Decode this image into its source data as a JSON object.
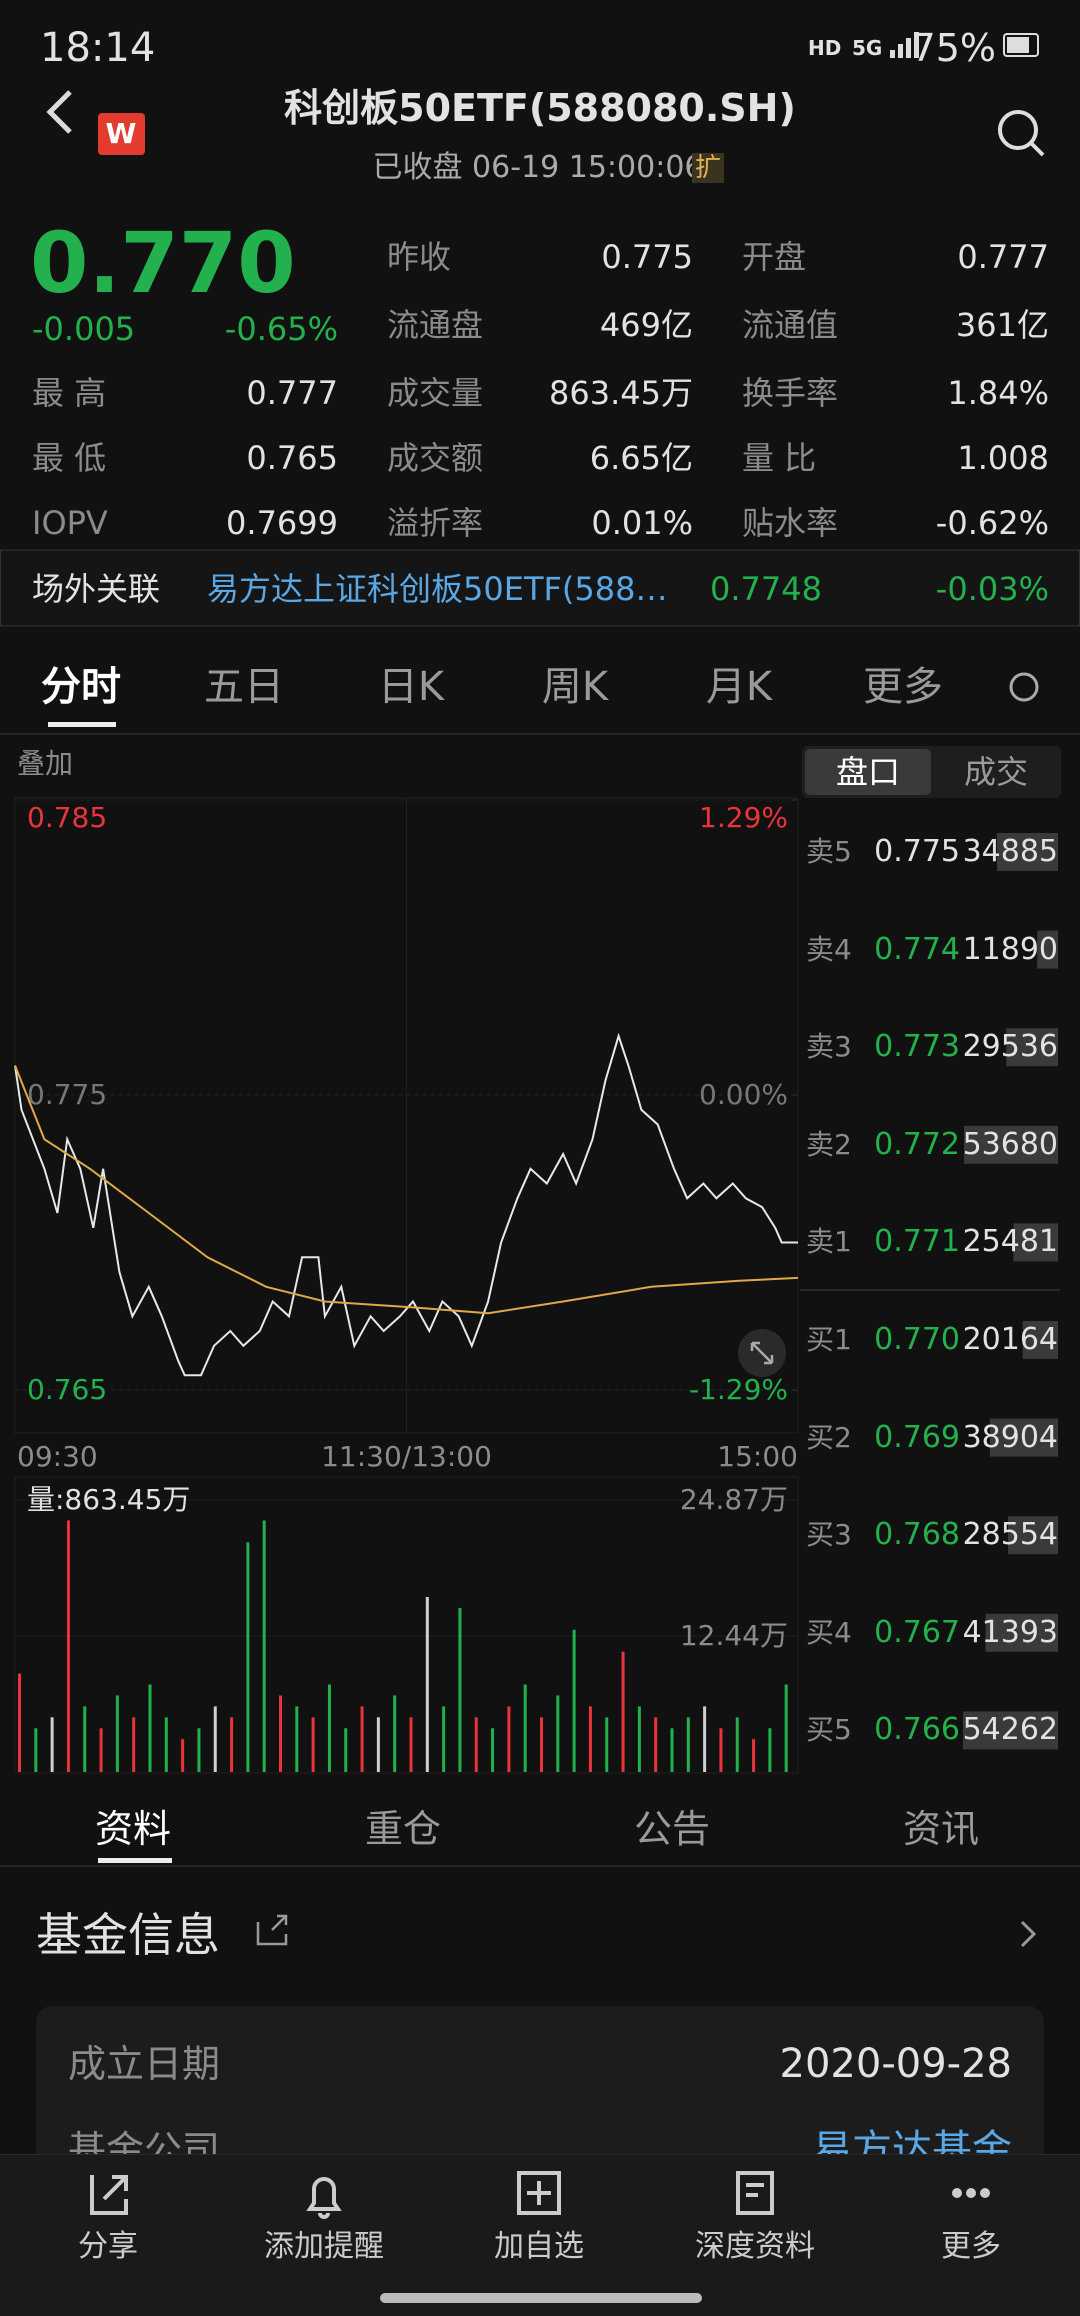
{
  "status_bar": {
    "time": "18:14",
    "hd": "HD",
    "network": "5G",
    "battery": "75%"
  },
  "header": {
    "logo": "W",
    "title": "科创板50ETF(588080.SH)",
    "subtitle": "已收盘 06-19 15:00:06",
    "badge": "扩"
  },
  "quote": {
    "price": "0.770",
    "change": "-0.005",
    "change_pct": "-0.65%",
    "left_stats": [
      {
        "label": "最 高",
        "value": "0.777"
      },
      {
        "label": "最 低",
        "value": "0.765"
      },
      {
        "label": "IOPV",
        "value": "0.7699"
      }
    ],
    "mid_stats": [
      {
        "label": "昨收",
        "value": "0.775"
      },
      {
        "label": "流通盘",
        "value": "469亿"
      },
      {
        "label": "成交量",
        "value": "863.45万"
      },
      {
        "label": "成交额",
        "value": "6.65亿"
      },
      {
        "label": "溢折率",
        "value": "0.01%"
      }
    ],
    "right_stats": [
      {
        "label": "开盘",
        "value": "0.777"
      },
      {
        "label": "流通值",
        "value": "361亿"
      },
      {
        "label": "换手率",
        "value": "1.84%"
      },
      {
        "label": "量 比",
        "value": "1.008"
      },
      {
        "label": "贴水率",
        "value": "-0.62%"
      }
    ]
  },
  "linked": {
    "label": "场外关联",
    "name": "易方达上证科创板50ETF(588…",
    "price": "0.7748",
    "change": "-0.03%"
  },
  "chart_tabs": [
    "分时",
    "五日",
    "日K",
    "周K",
    "月K",
    "更多"
  ],
  "overlay": "叠加",
  "book_tabs": [
    "盘口",
    "成交"
  ],
  "chart_data": [
    {
      "type": "line",
      "xlim": [
        0,
        240
      ],
      "xticks": [
        {
          "value": 0,
          "label": "09:30"
        },
        {
          "value": 120,
          "label": "11:30/13:00"
        },
        {
          "value": 240,
          "label": "15:00"
        }
      ],
      "ylim": [
        0.765,
        0.785
      ],
      "yticks": [
        0.785,
        0.775,
        0.765
      ],
      "y2lim": [
        -1.29,
        1.29
      ],
      "y2ticks": [
        {
          "value": 1.29,
          "label": "1.29%"
        },
        {
          "value": 0,
          "label": "0.00%"
        },
        {
          "value": -1.29,
          "label": "-1.29%"
        }
      ],
      "grid": true,
      "series": [
        {
          "color": "#e8e8e8",
          "x": [
            0,
            2,
            9,
            13,
            16,
            20,
            24,
            27,
            32,
            36,
            41,
            45,
            50,
            52,
            57,
            61,
            66,
            70,
            75,
            79,
            84,
            88,
            93,
            95,
            100,
            104,
            109,
            113,
            118,
            122,
            127,
            131,
            136,
            140,
            145,
            149,
            154,
            158,
            163,
            168,
            172,
            177,
            181,
            185,
            188,
            192,
            197,
            202,
            206,
            211,
            215,
            220,
            224,
            229,
            233,
            235,
            240
          ],
          "values": [
            0.776,
            0.7745,
            0.7725,
            0.771,
            0.7735,
            0.7725,
            0.7705,
            0.7725,
            0.769,
            0.7675,
            0.7685,
            0.7675,
            0.766,
            0.7655,
            0.7655,
            0.7665,
            0.767,
            0.7665,
            0.767,
            0.768,
            0.7675,
            0.7695,
            0.7695,
            0.7675,
            0.7685,
            0.7665,
            0.7675,
            0.767,
            0.7675,
            0.768,
            0.767,
            0.768,
            0.7675,
            0.7665,
            0.768,
            0.77,
            0.7715,
            0.7725,
            0.772,
            0.773,
            0.772,
            0.7735,
            0.7755,
            0.777,
            0.776,
            0.7745,
            0.774,
            0.7725,
            0.7715,
            0.772,
            0.7715,
            0.772,
            0.7715,
            0.7712,
            0.7705,
            0.77,
            0.77
          ]
        },
        {
          "color": "#e0a84a",
          "x": [
            0,
            9,
            23,
            41,
            59,
            77,
            95,
            122,
            145,
            168,
            195,
            222,
            240
          ],
          "values": [
            0.776,
            0.7735,
            0.7725,
            0.771,
            0.7695,
            0.7685,
            0.768,
            0.7678,
            0.7676,
            0.768,
            0.7685,
            0.7687,
            0.7688
          ]
        }
      ]
    },
    {
      "type": "bar",
      "title": "量:863.45万",
      "xlim": [
        0,
        240
      ],
      "ylim": [
        0,
        24.87
      ],
      "yticks": [
        {
          "value": 24.87,
          "label": "24.87万"
        },
        {
          "value": 12.44,
          "label": "12.44万"
        }
      ],
      "x": [
        0,
        5,
        10,
        15,
        20,
        25,
        30,
        35,
        40,
        45,
        50,
        55,
        60,
        65,
        70,
        75,
        80,
        85,
        90,
        95,
        100,
        105,
        110,
        115,
        120,
        125,
        130,
        135,
        140,
        145,
        150,
        155,
        160,
        165,
        170,
        175,
        180,
        185,
        190,
        195,
        200,
        205,
        210,
        215,
        220,
        225,
        230,
        235
      ],
      "values": [
        9,
        4,
        5,
        23,
        6,
        4,
        7,
        5,
        8,
        5,
        3,
        4,
        6,
        5,
        21,
        23,
        7,
        6,
        5,
        8,
        4,
        6,
        5,
        7,
        5,
        16,
        6,
        15,
        5,
        4,
        6,
        8,
        5,
        7,
        13,
        6,
        5,
        11,
        6,
        5,
        4,
        5,
        6,
        4,
        5,
        3,
        4,
        8
      ],
      "colors": [
        "#e8343a",
        "#22b14c",
        "#cfcfcf",
        "#e8343a",
        "#22b14c",
        "#e8343a",
        "#22b14c",
        "#e8343a",
        "#22b14c",
        "#22b14c",
        "#e8343a",
        "#22b14c",
        "#cfcfcf",
        "#e8343a",
        "#22b14c",
        "#22b14c",
        "#e8343a",
        "#22b14c",
        "#e8343a",
        "#22b14c",
        "#22b14c",
        "#e8343a",
        "#cfcfcf",
        "#22b14c",
        "#e8343a",
        "#cfcfcf",
        "#22b14c",
        "#22b14c",
        "#e8343a",
        "#22b14c",
        "#e8343a",
        "#22b14c",
        "#e8343a",
        "#22b14c",
        "#22b14c",
        "#e8343a",
        "#22b14c",
        "#e8343a",
        "#22b14c",
        "#e8343a",
        "#22b14c",
        "#22b14c",
        "#cfcfcf",
        "#e8343a",
        "#22b14c",
        "#e8343a",
        "#22b14c",
        "#22b14c"
      ]
    }
  ],
  "order_book": [
    {
      "side": "卖5",
      "price": "0.775",
      "volume": 34885
    },
    {
      "side": "卖4",
      "price": "0.774",
      "volume": 11890
    },
    {
      "side": "卖3",
      "price": "0.773",
      "volume": 29536
    },
    {
      "side": "卖2",
      "price": "0.772",
      "volume": 53680
    },
    {
      "side": "卖1",
      "price": "0.771",
      "volume": 25481
    },
    {
      "side": "买1",
      "price": "0.770",
      "volume": 20164
    },
    {
      "side": "买2",
      "price": "0.769",
      "volume": 38904
    },
    {
      "side": "买3",
      "price": "0.768",
      "volume": 28554
    },
    {
      "side": "买4",
      "price": "0.767",
      "volume": 41393
    },
    {
      "side": "买5",
      "price": "0.766",
      "volume": 54262
    }
  ],
  "info_tabs": [
    "资料",
    "重仓",
    "公告",
    "资讯"
  ],
  "fund_info": {
    "title": "基金信息",
    "rows": [
      {
        "label": "成立日期",
        "value": "2020-09-28"
      },
      {
        "label": "基金公司",
        "value": "易方达基金"
      }
    ]
  },
  "bottom_nav": [
    "分享",
    "添加提醒",
    "加自选",
    "深度资料",
    "更多"
  ]
}
